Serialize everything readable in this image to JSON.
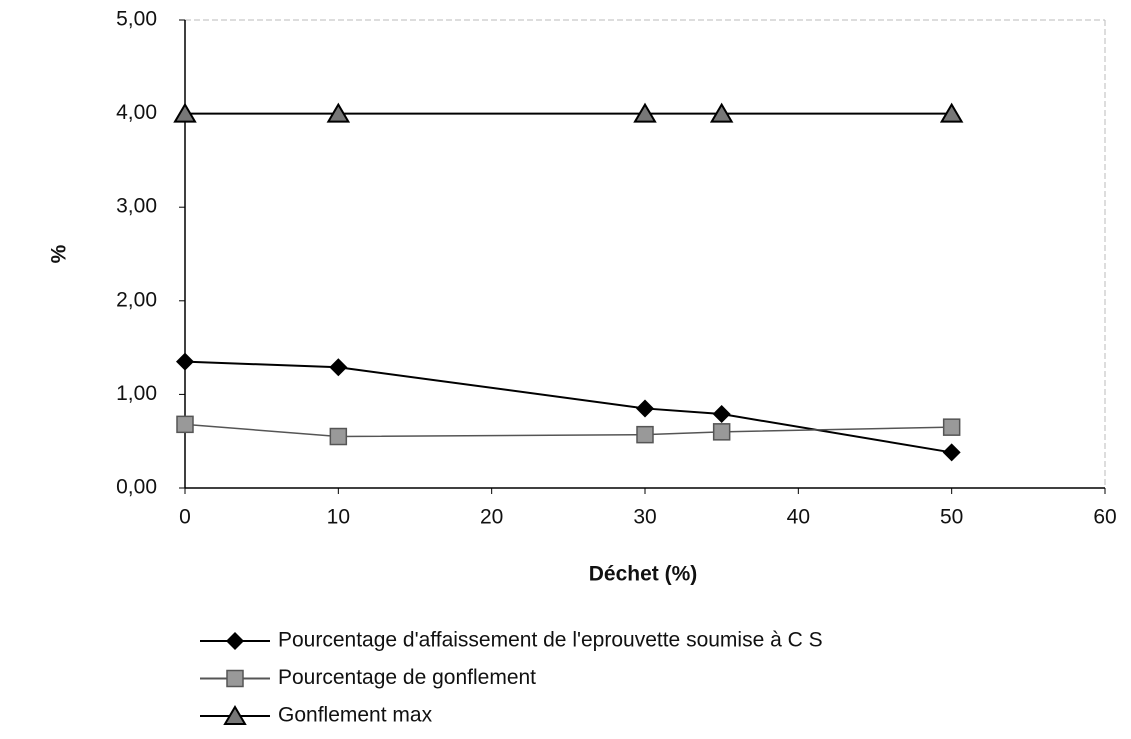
{
  "chart_data": {
    "type": "line",
    "x_label": "Déchet (%)",
    "y_label": "%",
    "x": [
      0,
      10,
      30,
      35,
      50
    ],
    "series": [
      {
        "name": "Pourcentage d'affaissement de l'eprouvette soumise à C S",
        "color": "#000000",
        "marker": "diamond",
        "values": [
          1.35,
          1.29,
          0.85,
          0.79,
          0.38
        ]
      },
      {
        "name": "Pourcentage de gonflement",
        "color": "#555555",
        "marker": "square",
        "values": [
          0.68,
          0.55,
          0.57,
          0.6,
          0.65
        ]
      },
      {
        "name": "Gonflement max",
        "color": "#000000",
        "marker": "triangle",
        "values": [
          4,
          4,
          4,
          4,
          4
        ]
      }
    ],
    "xlim": [
      0,
      60
    ],
    "xticks": [
      0,
      10,
      20,
      30,
      40,
      50,
      60
    ],
    "ylim": [
      0,
      5
    ],
    "yticks": [
      {
        "value": 0,
        "label": "0,00"
      },
      {
        "value": 1,
        "label": "1,00"
      },
      {
        "value": 2,
        "label": "2,00"
      },
      {
        "value": 3,
        "label": "3,00"
      },
      {
        "value": 4,
        "label": "4,00"
      },
      {
        "value": 5,
        "label": "5,00"
      }
    ],
    "legend": "bottom"
  }
}
